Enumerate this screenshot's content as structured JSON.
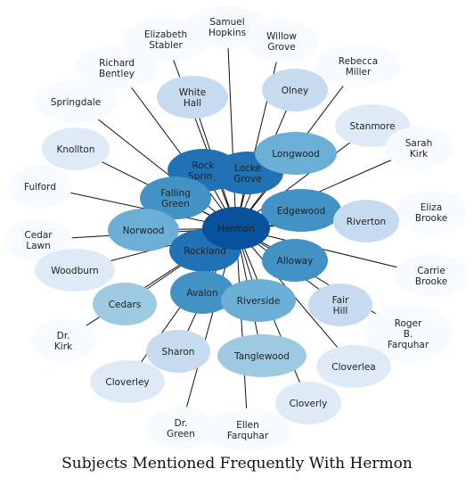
{
  "title": "Subjects Mentioned Frequently With Hermon",
  "center": {
    "label": "Hermon",
    "color": "#08519c"
  },
  "nodes": [
    {
      "label": "Samuel\nHopkins",
      "color": "#f7fbff"
    },
    {
      "label": "Willow\nGrove",
      "color": "#f7fbff"
    },
    {
      "label": "Elizabeth\nStabler",
      "color": "#f7fbff"
    },
    {
      "label": "Rebecca\nMiller",
      "color": "#f7fbff"
    },
    {
      "label": "Richard\nBentley",
      "color": "#f7fbff"
    },
    {
      "label": "White\nHall",
      "color": "#c6dbef"
    },
    {
      "label": "Olney",
      "color": "#c6dbef"
    },
    {
      "label": "Springdale",
      "color": "#f7fbff"
    },
    {
      "label": "Stanmore",
      "color": "#deebf7"
    },
    {
      "label": "Sarah\nKirk",
      "color": "#f7fbff"
    },
    {
      "label": "Knollton",
      "color": "#deebf7"
    },
    {
      "label": "Rock\nSpring",
      "color": "#2171b5"
    },
    {
      "label": "Locke\nGrove",
      "color": "#2171b5"
    },
    {
      "label": "Longwood",
      "color": "#6baed6"
    },
    {
      "label": "Fulford",
      "color": "#f7fbff"
    },
    {
      "label": "Falling\nGreen",
      "color": "#4292c6"
    },
    {
      "label": "Edgewood",
      "color": "#4292c6"
    },
    {
      "label": "Eliza\nBrooke",
      "color": "#f7fbff"
    },
    {
      "label": "Cedar\nLawn",
      "color": "#f7fbff"
    },
    {
      "label": "Norwood",
      "color": "#6baed6"
    },
    {
      "label": "Riverton",
      "color": "#c6dbef"
    },
    {
      "label": "Rockland",
      "color": "#2171b5"
    },
    {
      "label": "Woodburn",
      "color": "#deebf7"
    },
    {
      "label": "Alloway",
      "color": "#4292c6"
    },
    {
      "label": "Carrie\nBrooke",
      "color": "#f7fbff"
    },
    {
      "label": "Avalon",
      "color": "#4292c6"
    },
    {
      "label": "Cedars",
      "color": "#9ecae1"
    },
    {
      "label": "Riverside",
      "color": "#6baed6"
    },
    {
      "label": "Fair\nHill",
      "color": "#c6dbef"
    },
    {
      "label": "Dr.\nKirk",
      "color": "#f7fbff"
    },
    {
      "label": "Roger\nB.\nFarquhar",
      "color": "#f7fbff"
    },
    {
      "label": "Sharon",
      "color": "#c6dbef"
    },
    {
      "label": "Tanglewood",
      "color": "#9ecae1"
    },
    {
      "label": "Cloverlea",
      "color": "#deebf7"
    },
    {
      "label": "Cloverley",
      "color": "#deebf7"
    },
    {
      "label": "Cloverly",
      "color": "#deebf7"
    },
    {
      "label": "Dr.\nGreen",
      "color": "#f7fbff"
    },
    {
      "label": "Ellen\nFarquhar",
      "color": "#f7fbff"
    }
  ]
}
